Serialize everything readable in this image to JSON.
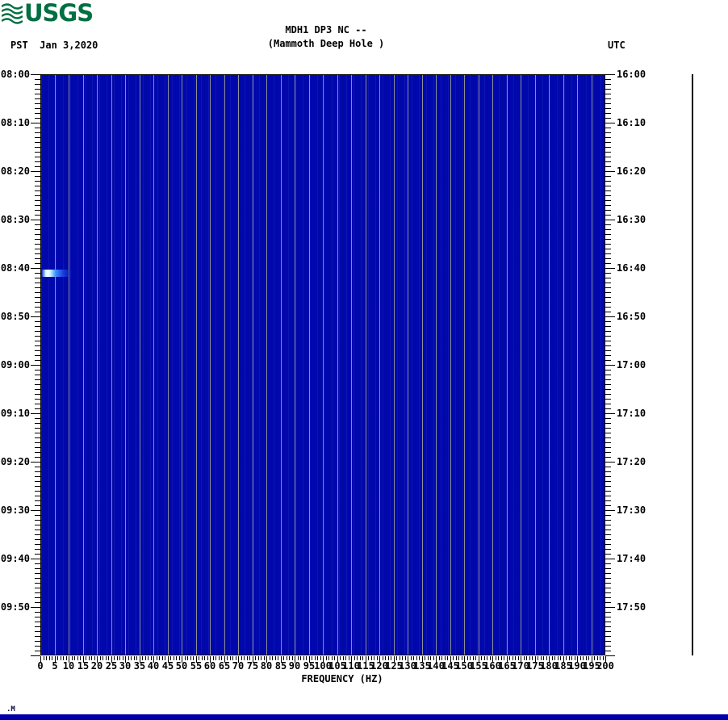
{
  "logo": {
    "text": "USGS",
    "color": "#006F41"
  },
  "header": {
    "title_line1": "MDH1 DP3 NC --",
    "title_line2": "(Mammoth Deep Hole )",
    "tz_left": "PST",
    "date": "Jan 3,2020",
    "tz_right": "UTC"
  },
  "chart_data": {
    "type": "heatmap",
    "subtype": "spectrogram",
    "title": "MDH1 DP3 NC -- (Mammoth Deep Hole )",
    "xlabel": "FREQUENCY (HZ)",
    "x_axis": {
      "min": 0,
      "max": 200,
      "major_step": 5,
      "minor_step": 1,
      "tick_labels": [
        "0",
        "5",
        "10",
        "15",
        "20",
        "25",
        "30",
        "35",
        "40",
        "45",
        "50",
        "55",
        "60",
        "65",
        "70",
        "75",
        "80",
        "85",
        "90",
        "95",
        "100",
        "105",
        "110",
        "115",
        "120",
        "125",
        "130",
        "135",
        "140",
        "145",
        "150",
        "155",
        "160",
        "165",
        "170",
        "175",
        "180",
        "185",
        "190",
        "195",
        "200"
      ]
    },
    "y_axis_left": {
      "timezone": "PST",
      "start": "08:00",
      "end": "10:00",
      "span_minutes": 120,
      "major_step_minutes": 10,
      "minor_step_minutes": 1,
      "tick_labels": [
        "08:00",
        "08:10",
        "08:20",
        "08:30",
        "08:40",
        "08:50",
        "09:00",
        "09:10",
        "09:20",
        "09:30",
        "09:40",
        "09:50"
      ]
    },
    "y_axis_right": {
      "timezone": "UTC",
      "tick_labels": [
        "16:00",
        "16:10",
        "16:20",
        "16:30",
        "16:40",
        "16:50",
        "17:00",
        "17:10",
        "17:20",
        "17:30",
        "17:40",
        "17:50"
      ]
    },
    "colors": {
      "background": "#0008AD",
      "gridline": "#8E9094",
      "frame": "#000000"
    },
    "events": [
      {
        "time_pst": "08:41",
        "time_utc": "16:41",
        "freq_hz_start": 0,
        "freq_hz_end": 10.5,
        "description": "bright low-frequency energy burst",
        "core_color": "#C9F4FF",
        "mid_color": "#3D8FFF",
        "edge_color": "#1B3BD8"
      }
    ],
    "grid_on": true,
    "legend": "none",
    "scale_bar": {
      "present": true,
      "color": "#000000"
    }
  },
  "footer": {
    "mark": ".M",
    "bar_color": "#0000A8"
  }
}
